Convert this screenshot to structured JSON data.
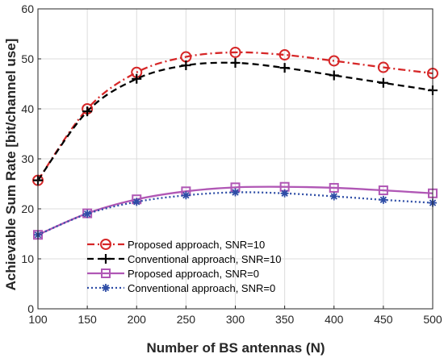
{
  "chart_data": {
    "type": "line",
    "xlabel": "Number of BS antennas (N)",
    "ylabel": "Achievable Sum Rate [bit/channel use]",
    "xlim": [
      100,
      500
    ],
    "ylim": [
      0,
      60
    ],
    "x": [
      100,
      150,
      200,
      250,
      300,
      350,
      400,
      450,
      500
    ],
    "x_ticks": [
      "100",
      "150",
      "200",
      "250",
      "300",
      "350",
      "400",
      "450",
      "500"
    ],
    "y_ticks": [
      "0",
      "10",
      "20",
      "30",
      "40",
      "50",
      "60"
    ],
    "grid": true,
    "legend_position": "bottom-left",
    "series": [
      {
        "name": "Proposed approach, SNR=10",
        "values": [
          25.7,
          40.0,
          47.3,
          50.4,
          51.3,
          50.8,
          49.6,
          48.3,
          47.1
        ],
        "color": "#d62728",
        "marker": "circle",
        "dash": "dashdot"
      },
      {
        "name": "Conventional approach, SNR=10",
        "values": [
          25.7,
          39.5,
          46.0,
          48.7,
          49.2,
          48.2,
          46.7,
          45.2,
          43.7
        ],
        "color": "#000000",
        "marker": "plus",
        "dash": "dashed"
      },
      {
        "name": "Proposed approach, SNR=0",
        "values": [
          14.8,
          19.1,
          21.9,
          23.5,
          24.3,
          24.4,
          24.2,
          23.7,
          23.1
        ],
        "color": "#b057b5",
        "marker": "square",
        "dash": "solid"
      },
      {
        "name": "Conventional approach, SNR=0",
        "values": [
          14.8,
          19.0,
          21.4,
          22.7,
          23.3,
          23.1,
          22.5,
          21.8,
          21.2
        ],
        "color": "#2e4da6",
        "marker": "star",
        "dash": "dotted"
      }
    ]
  }
}
